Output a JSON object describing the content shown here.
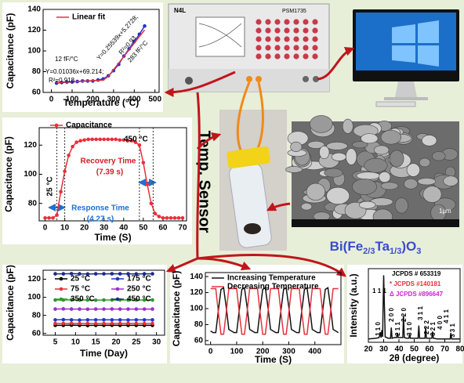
{
  "chart_data": [
    {
      "type": "line",
      "xlabel": "Temperature (°C)",
      "ylabel": "Capacitance (pF)",
      "x": [
        25,
        50,
        75,
        100,
        125,
        150,
        175,
        200,
        225,
        250,
        275,
        300,
        325,
        350,
        375,
        400,
        425,
        450
      ],
      "series": [
        {
          "color": "#2233cc",
          "markers": true,
          "values": [
            69,
            69.5,
            70,
            70,
            70.5,
            71,
            71,
            71,
            72,
            73,
            76,
            81,
            87,
            95,
            102,
            109,
            116,
            124
          ]
        },
        {
          "name": "Linear fit",
          "color": "#e8303a",
          "values": [
            69.47,
            69.73,
            69.99,
            70.25,
            70.51,
            70.77,
            71.03,
            71.29,
            71.54,
            71.8,
            75.51,
            81.89,
            88.28,
            94.66,
            101.05,
            107.43,
            113.82,
            120.2
          ]
        }
      ],
      "xlim": [
        -40,
        520
      ],
      "ylim": [
        60,
        140
      ],
      "xticks": [
        0,
        100,
        200,
        300,
        400,
        500
      ],
      "yticks": [
        60,
        80,
        100,
        120,
        140
      ],
      "annotations": [
        {
          "text": "12 fF/°C"
        },
        {
          "text": "Y=0.01036x+69.214;"
        },
        {
          "text": "R²=0.918"
        },
        {
          "text": "Y=0.25539x+5.2728;"
        },
        {
          "text": "R²=0.93"
        },
        {
          "text": "283 fF/°C"
        }
      ]
    },
    {
      "type": "line",
      "xlabel": "Time (S)",
      "ylabel": "Capacitance (pF)",
      "x": [
        0,
        2,
        4,
        6,
        8,
        10,
        12,
        14,
        16,
        18,
        20,
        22,
        24,
        26,
        28,
        30,
        32,
        34,
        36,
        38,
        40,
        42,
        44,
        46,
        48,
        50,
        52,
        54,
        56,
        58,
        60,
        62,
        64,
        66,
        68,
        70
      ],
      "series": [
        {
          "name": "Capacitance",
          "color": "#e8303a",
          "markers": true,
          "values": [
            70,
            70,
            70,
            72,
            88,
            102,
            113,
            119,
            122,
            123,
            123.5,
            124,
            124,
            124,
            124,
            124,
            124,
            124,
            124,
            123.5,
            123.5,
            123,
            123,
            122,
            120,
            108,
            93,
            80,
            73,
            71,
            70,
            70,
            70,
            70,
            70,
            70
          ]
        }
      ],
      "xlim": [
        -3,
        72
      ],
      "ylim": [
        68,
        132
      ],
      "xticks": [
        0,
        10,
        20,
        30,
        40,
        50,
        60,
        70
      ],
      "yticks": [
        80,
        100,
        120
      ],
      "vlines": [
        6,
        10,
        48,
        55
      ],
      "annotations": [
        {
          "text": "450 °C"
        },
        {
          "text": "25 °C"
        },
        {
          "text": "Recovery Time",
          "color": "#d0202a"
        },
        {
          "text": "(7.39 s)",
          "color": "#d0202a"
        },
        {
          "text": "Response Time",
          "color": "#1f6fd0"
        },
        {
          "text": "(4.27 s)",
          "color": "#1f6fd0"
        }
      ]
    },
    {
      "type": "line",
      "xlabel": "Time (Day)",
      "ylabel": "Capacitance (pF)",
      "x": [
        5,
        7,
        9,
        11,
        13,
        15,
        17,
        19,
        21,
        23,
        25,
        27,
        29
      ],
      "series": [
        {
          "name": "25 °C",
          "color": "#000000",
          "markers": true,
          "values": [
            69,
            69,
            69.2,
            69,
            68.8,
            69,
            69,
            69.1,
            69,
            69,
            68.9,
            69,
            69
          ]
        },
        {
          "name": "175 °C",
          "color": "#2233cc",
          "markers": true,
          "values": [
            75,
            75.2,
            75,
            74.8,
            75,
            75,
            75.1,
            75,
            75,
            74.9,
            75,
            75,
            75
          ]
        },
        {
          "name": "75 °C",
          "color": "#e8303a",
          "markers": true,
          "values": [
            71,
            71,
            71.1,
            71,
            71,
            70.9,
            71,
            71,
            71,
            71.1,
            71,
            71,
            71
          ]
        },
        {
          "name": "250 °C",
          "color": "#9b30d0",
          "markers": true,
          "values": [
            87,
            87.2,
            87,
            87,
            86.8,
            87,
            87,
            87.1,
            87,
            87,
            87,
            86.9,
            87
          ]
        },
        {
          "name": "350 °C",
          "color": "#2a9a2a",
          "markers": true,
          "values": [
            97,
            97,
            97.2,
            97,
            97,
            96.8,
            97,
            97,
            97.1,
            97,
            97,
            97,
            97
          ]
        },
        {
          "name": "450 °C",
          "color": "#1a2a8a",
          "markers": true,
          "values": [
            126,
            126,
            126.2,
            126,
            125.8,
            126,
            126,
            126.1,
            126,
            126,
            125.9,
            126,
            126
          ]
        }
      ],
      "xlim": [
        2,
        32
      ],
      "ylim": [
        58,
        130
      ],
      "xticks": [
        5,
        10,
        15,
        20,
        25,
        30
      ],
      "yticks": [
        60,
        80,
        100,
        120
      ]
    },
    {
      "type": "line",
      "xlabel": "Time (S)",
      "ylabel": "Capacitance (pF)",
      "x": [
        0,
        10,
        20,
        30,
        40,
        50,
        60,
        70,
        80,
        90,
        100,
        110,
        120,
        130,
        140,
        150,
        160,
        170,
        180,
        190,
        200,
        210,
        220,
        230,
        240,
        250,
        260,
        270,
        280,
        290,
        300,
        310,
        320,
        330,
        340,
        350,
        360,
        370,
        380,
        390,
        400,
        410,
        420,
        430,
        440,
        450,
        460,
        470,
        480,
        490
      ],
      "series": [
        {
          "name": "Increasing Temperature",
          "color": "#111111",
          "values": [
            72,
            70,
            70,
            98,
            124,
            126,
            102,
            74,
            72,
            70,
            70,
            98,
            124,
            126,
            102,
            74,
            72,
            70,
            70,
            98,
            124,
            126,
            102,
            74,
            72,
            70,
            70,
            98,
            124,
            126,
            102,
            74,
            72,
            70,
            70,
            98,
            124,
            126,
            102,
            74,
            72,
            70,
            70,
            98,
            124,
            126,
            102,
            74,
            72,
            70
          ]
        },
        {
          "name": "Decreasing Temperature",
          "color": "#e8303a",
          "values": [
            125,
            125,
            125,
            95,
            68,
            68,
            95,
            125,
            125,
            125,
            125,
            95,
            68,
            68,
            95,
            125,
            125,
            125,
            125,
            95,
            68,
            68,
            95,
            125,
            125,
            125,
            125,
            95,
            68,
            68,
            95,
            125,
            125,
            125,
            125,
            95,
            68,
            68,
            95,
            125,
            125,
            125,
            125,
            95,
            68,
            68,
            95,
            125,
            125,
            125
          ]
        }
      ],
      "xlim": [
        -20,
        500
      ],
      "ylim": [
        55,
        145
      ],
      "xticks": [
        0,
        100,
        200,
        300,
        400
      ],
      "yticks": [
        60,
        80,
        100,
        120,
        140
      ]
    },
    {
      "type": "line",
      "xlabel": "2θ (degree)",
      "ylabel": "Intensity (a.u.)",
      "x": [
        20,
        25,
        27,
        27.8,
        28.3,
        28.8,
        29.3,
        30,
        31,
        33,
        34.5,
        35,
        35.5,
        37,
        38.5,
        39,
        39.5,
        41,
        42.5,
        43,
        43.5,
        45,
        46.5,
        47,
        47.5,
        50,
        52.5,
        53,
        53.5,
        56,
        57,
        57.5,
        58,
        60,
        61.5,
        62,
        62.5,
        65,
        68,
        71,
        73.5,
        74,
        74.5,
        77,
        80
      ],
      "series": [
        {
          "color": "#111111",
          "values": [
            5,
            6,
            7,
            15,
            7,
            18,
            8,
            100,
            8,
            6,
            6,
            22,
            6,
            7,
            7,
            14,
            7,
            7,
            7,
            40,
            7,
            6,
            6,
            12,
            6,
            6,
            6,
            25,
            6,
            6,
            6,
            22,
            6,
            6,
            6,
            16,
            6,
            5,
            5,
            5,
            5,
            14,
            5,
            5,
            5
          ]
        }
      ],
      "xlim": [
        20,
        80
      ],
      "ylim": [
        0,
        110
      ],
      "xticks": [
        20,
        30,
        40,
        50,
        60,
        70,
        80
      ],
      "annotations": [
        {
          "text": "JCPDS # 653319"
        },
        {
          "text": "* JCPDS #140181",
          "color": "#e8303a"
        },
        {
          "text": "Δ JCPDS #896647",
          "color": "#d020d0"
        },
        {
          "text": "1 1 1"
        },
        {
          "text": "2 0 0"
        },
        {
          "text": "1 1 0"
        },
        {
          "text": "2 1 1"
        },
        {
          "text": "2 2 0"
        },
        {
          "text": "3 1 0"
        },
        {
          "text": "3 1 1"
        },
        {
          "text": "2 2 2"
        },
        {
          "text": "3 2 1"
        },
        {
          "text": "4 0 0"
        },
        {
          "text": "4 1 1"
        },
        {
          "text": "3 3 1"
        }
      ]
    }
  ],
  "labels": {
    "sensor": "Temp. Sensor",
    "material": [
      "Bi(Fe",
      "2/3",
      "Ta",
      "1/3",
      ")O",
      "3"
    ],
    "brand": "N4L",
    "model": "PSM1735",
    "scale_bar": "1μm"
  }
}
